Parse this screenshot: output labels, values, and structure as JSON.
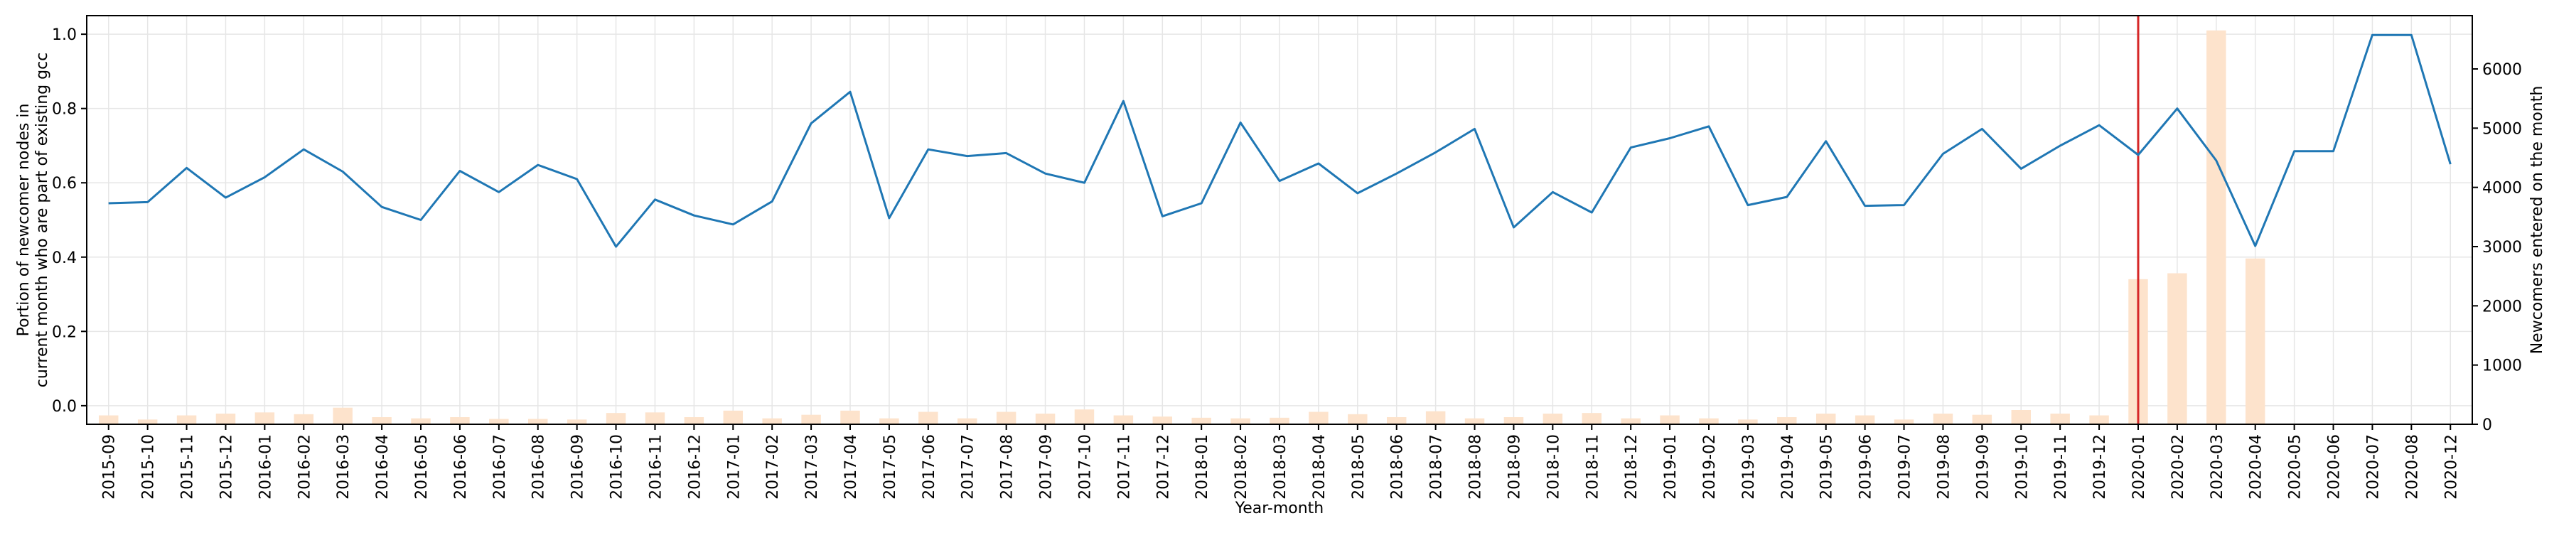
{
  "chart_data": {
    "type": "line",
    "title": "",
    "xlabel": "Year-month",
    "ylabel_left": "Portion of newcomer nodes in\ncurrent month who are part of existing gcc",
    "ylabel_right": "Newcomers entered on the month",
    "categories": [
      "2015-09",
      "2015-10",
      "2015-11",
      "2015-12",
      "2016-01",
      "2016-02",
      "2016-03",
      "2016-04",
      "2016-05",
      "2016-06",
      "2016-07",
      "2016-08",
      "2016-09",
      "2016-10",
      "2016-11",
      "2016-12",
      "2017-01",
      "2017-02",
      "2017-03",
      "2017-04",
      "2017-05",
      "2017-06",
      "2017-07",
      "2017-08",
      "2017-09",
      "2017-10",
      "2017-11",
      "2017-12",
      "2018-01",
      "2018-02",
      "2018-03",
      "2018-04",
      "2018-05",
      "2018-06",
      "2018-07",
      "2018-08",
      "2018-09",
      "2018-10",
      "2018-11",
      "2018-12",
      "2019-01",
      "2019-02",
      "2019-03",
      "2019-04",
      "2019-05",
      "2019-06",
      "2019-07",
      "2019-08",
      "2019-09",
      "2019-10",
      "2019-11",
      "2019-12",
      "2020-01",
      "2020-02",
      "2020-03",
      "2020-04",
      "2020-05",
      "2020-06",
      "2020-07",
      "2020-08",
      "2020-12"
    ],
    "ylim_left": [
      -0.05,
      1.05
    ],
    "yticks_left": [
      0.0,
      0.2,
      0.4,
      0.6,
      0.8,
      1.0
    ],
    "ytick_labels_left": [
      "0.0",
      "0.2",
      "0.4",
      "0.6",
      "0.8",
      "1.0"
    ],
    "ylim_right": [
      0,
      6900
    ],
    "yticks_right": [
      0,
      1000,
      2000,
      3000,
      4000,
      5000,
      6000
    ],
    "ytick_labels_right": [
      "0",
      "1000",
      "2000",
      "3000",
      "4000",
      "5000",
      "6000"
    ],
    "grid": true,
    "marker_line_category": "2020-01",
    "colors": {
      "line": "#1f77b4",
      "bars": "#fde3cc",
      "marker_line": "#d62728",
      "grid": "#e6e6e6"
    },
    "series": [
      {
        "type": "line",
        "axis": "left",
        "values": [
          0.545,
          0.548,
          0.64,
          0.56,
          0.615,
          0.69,
          0.63,
          0.535,
          0.5,
          0.632,
          0.575,
          0.648,
          0.61,
          0.428,
          0.555,
          0.512,
          0.488,
          0.55,
          0.76,
          0.845,
          0.505,
          0.69,
          0.672,
          0.68,
          0.625,
          0.6,
          0.82,
          0.51,
          0.545,
          0.762,
          0.605,
          0.652,
          0.572,
          0.625,
          0.682,
          0.745,
          0.48,
          0.575,
          0.52,
          0.695,
          0.72,
          0.752,
          0.54,
          0.562,
          0.712,
          0.538,
          0.54,
          0.678,
          0.745,
          0.638,
          0.7,
          0.755,
          0.675,
          0.8,
          0.66,
          0.43,
          0.685,
          0.685,
          0.998,
          0.998,
          0.65
        ]
      },
      {
        "type": "bar",
        "axis": "right",
        "values": [
          150,
          80,
          150,
          180,
          200,
          170,
          280,
          120,
          100,
          120,
          90,
          90,
          80,
          190,
          200,
          120,
          230,
          100,
          160,
          230,
          100,
          210,
          100,
          210,
          180,
          250,
          150,
          130,
          110,
          100,
          110,
          210,
          170,
          120,
          220,
          100,
          120,
          180,
          190,
          100,
          150,
          100,
          80,
          120,
          180,
          150,
          80,
          180,
          160,
          240,
          180,
          150,
          2450,
          2550,
          6650,
          2800,
          0,
          0,
          0,
          0,
          0
        ]
      }
    ]
  }
}
